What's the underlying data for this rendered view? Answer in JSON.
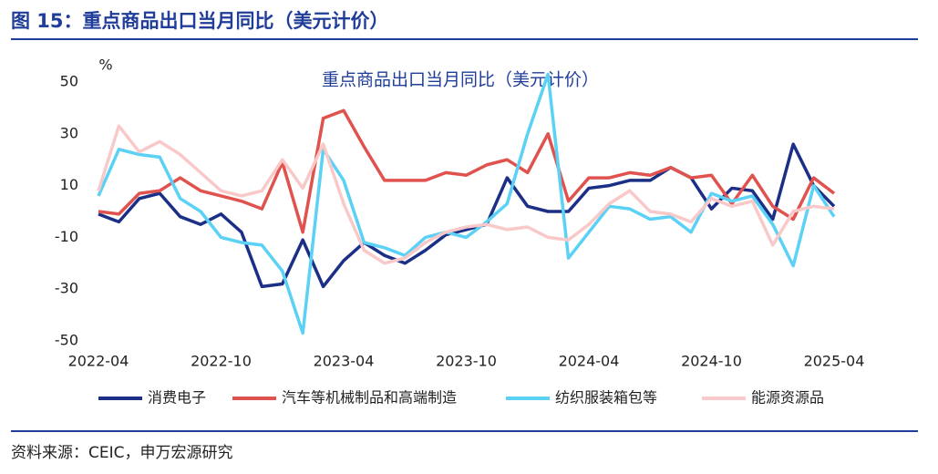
{
  "header": {
    "title": "图 15：重点商品出口当月同比（美元计价）"
  },
  "chart_data": {
    "type": "line",
    "title": "重点商品出口当月同比（美元计价）",
    "y_label": "%",
    "categories": [
      "2022-04",
      null,
      null,
      null,
      null,
      null,
      "2022-10",
      null,
      null,
      null,
      null,
      null,
      "2023-04",
      null,
      null,
      null,
      null,
      null,
      "2023-10",
      null,
      null,
      null,
      null,
      null,
      "2024-04",
      null,
      null,
      null,
      null,
      null,
      "2024-10",
      null,
      null,
      null,
      null,
      null,
      "2025-04"
    ],
    "ylim": [
      -50,
      50
    ],
    "yticks": [
      -50,
      -30,
      -10,
      10,
      30,
      50
    ],
    "grid": false,
    "legend": "bottom",
    "series": [
      {
        "name": "消费电子",
        "color": "#1b2f86",
        "values": [
          -1,
          -4,
          5,
          7,
          -2,
          -5,
          -1,
          -8,
          -29,
          -28,
          -11,
          -29,
          -19,
          -12,
          -17,
          -20,
          -15,
          -9,
          -7,
          -5,
          13,
          2,
          0,
          0,
          9,
          10,
          12,
          12,
          17,
          13,
          1,
          9,
          8,
          -3,
          26,
          10,
          2
        ]
      },
      {
        "name": "汽车等机械制品和高端制造",
        "color": "#e0524d",
        "values": [
          0,
          -1,
          7,
          8,
          13,
          8,
          6,
          4,
          1,
          19,
          -8,
          36,
          39,
          25,
          12,
          12,
          12,
          15,
          14,
          18,
          20,
          15,
          30,
          4,
          13,
          13,
          15,
          14,
          17,
          13,
          14,
          3,
          14,
          2,
          -3,
          13,
          7
        ]
      },
      {
        "name": "纺织服装箱包等",
        "color": "#5ad1f5",
        "values": [
          6,
          24,
          22,
          21,
          5,
          0,
          -10,
          -12,
          -13,
          -23,
          -47,
          24,
          12,
          -12,
          -14,
          -17,
          -10,
          -8,
          -10,
          -4,
          3,
          30,
          53,
          -18,
          -8,
          2,
          1,
          -3,
          -2,
          -8,
          7,
          4,
          6,
          -5,
          -21,
          10,
          -2
        ]
      },
      {
        "name": "能源资源品",
        "color": "#f9c8c8",
        "values": [
          8,
          33,
          23,
          27,
          22,
          15,
          8,
          6,
          8,
          20,
          9,
          26,
          3,
          -15,
          -20,
          -18,
          -12,
          -8,
          -6,
          -5,
          -7,
          -6,
          -10,
          -11,
          -5,
          3,
          8,
          0,
          -1,
          -4,
          5,
          2,
          4,
          -13,
          0,
          2,
          1
        ]
      }
    ]
  },
  "footer": {
    "source": "资料来源：CEIC，申万宏源研究"
  }
}
